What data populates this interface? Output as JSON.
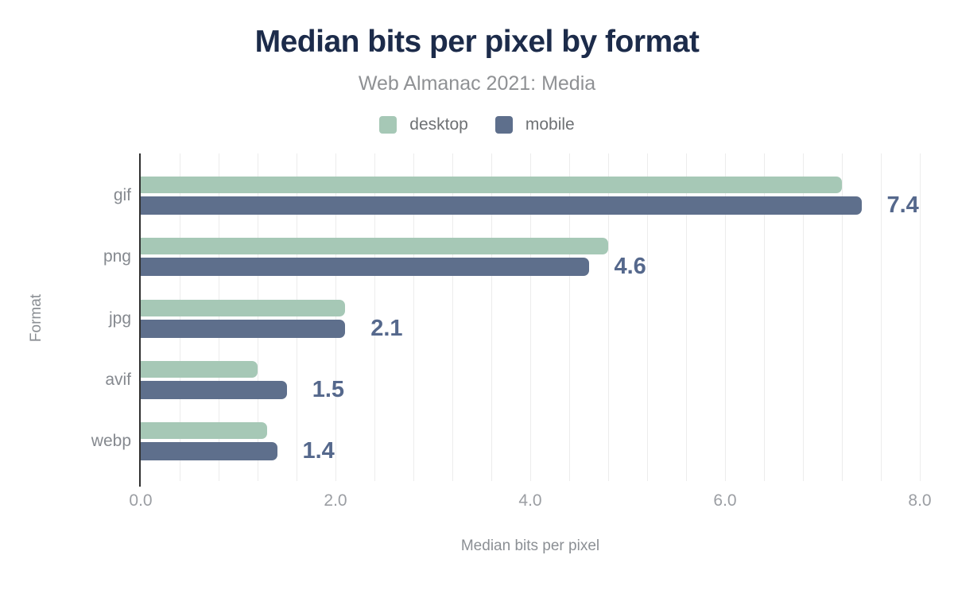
{
  "chart_data": {
    "type": "bar",
    "orientation": "horizontal",
    "title": "Median bits per pixel by format",
    "subtitle": "Web Almanac 2021: Media",
    "categories": [
      "gif",
      "png",
      "jpg",
      "avif",
      "webp"
    ],
    "series": [
      {
        "name": "desktop",
        "color": "#a6c8b6",
        "values": [
          7.2,
          4.8,
          2.1,
          1.2,
          1.3
        ]
      },
      {
        "name": "mobile",
        "color": "#5e6f8c",
        "values": [
          7.4,
          4.6,
          2.1,
          1.5,
          1.4
        ]
      }
    ],
    "value_labels": {
      "series": "mobile",
      "texts": [
        "7.4",
        "4.6",
        "2.1",
        "1.5",
        "1.4"
      ]
    },
    "xlabel": "Median bits per pixel",
    "ylabel": "Format",
    "xlim": [
      0,
      8
    ],
    "x_tick_values": [
      0,
      2,
      4,
      6,
      8
    ],
    "x_tick_labels": [
      "0.0",
      "2.0",
      "4.0",
      "6.0",
      "8.0"
    ],
    "grid": {
      "visible": true,
      "minor_step": 0.4
    },
    "legend_position": "top"
  },
  "colors": {
    "title": "#1c2b4a",
    "subtitle": "#8f9194",
    "legend_text": "#6e7174",
    "category_label": "#85898f",
    "tick_label": "#9b9ea3",
    "axis_title": "#8b8f94",
    "axis_line": "#303030",
    "gridline": "#ececec",
    "desktop_bar": "#a6c8b6",
    "mobile_bar": "#5e6f8c",
    "value_label": "#55688c"
  }
}
